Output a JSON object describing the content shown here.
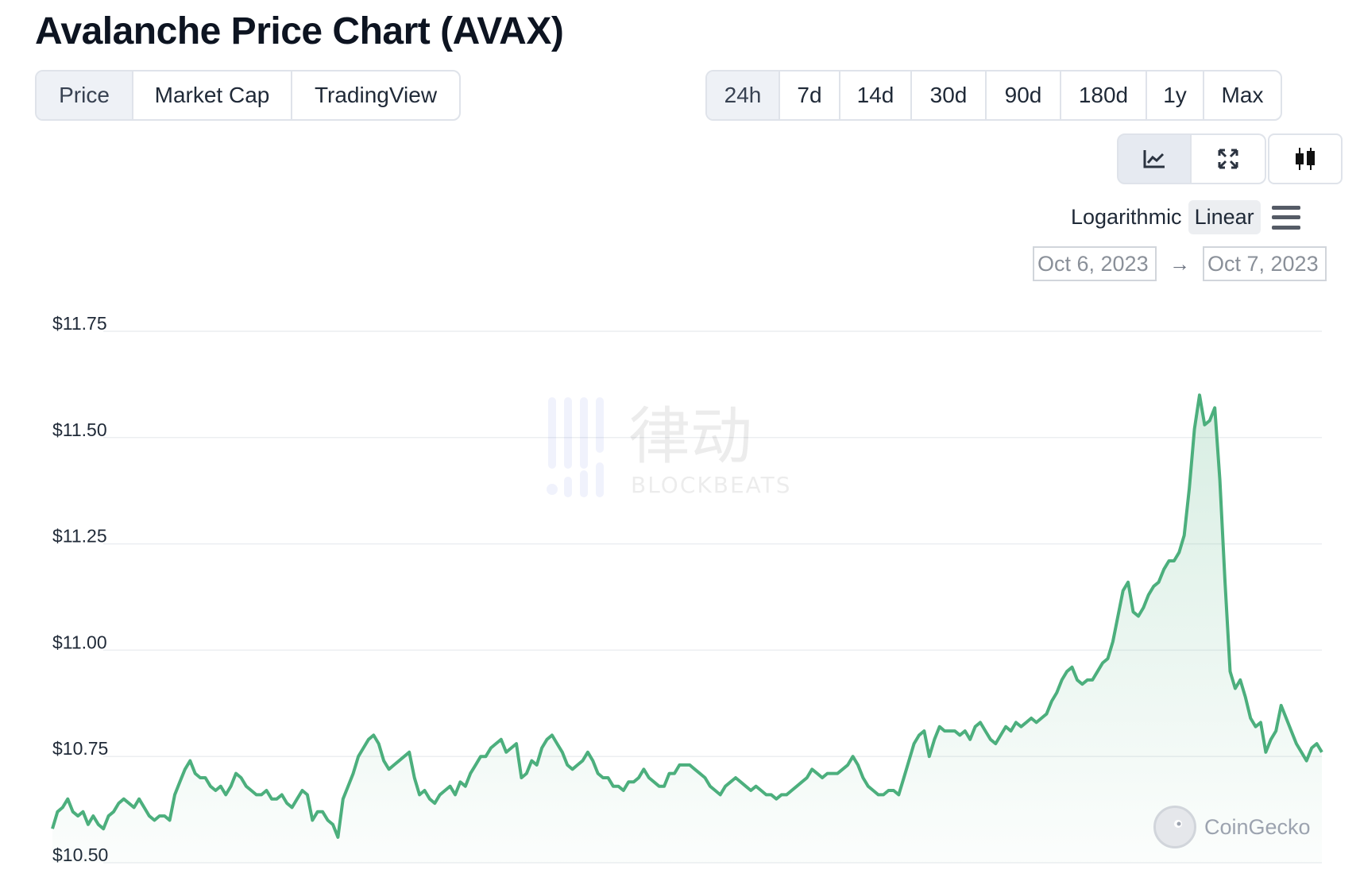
{
  "title": "Avalanche Price Chart (AVAX)",
  "view_tabs": [
    "Price",
    "Market Cap",
    "TradingView"
  ],
  "range_tabs": [
    "24h",
    "7d",
    "14d",
    "30d",
    "90d",
    "180d",
    "1y",
    "Max"
  ],
  "chart_type_icons": [
    "line-chart-icon",
    "expand-icon",
    "candlestick-icon"
  ],
  "scale": {
    "log_label": "Logarithmic",
    "linear_label": "Linear",
    "selected": "Linear"
  },
  "date_from": "Oct 6, 2023",
  "date_to": "Oct 7, 2023",
  "watermark": {
    "cn": "律动",
    "en": "BLOCKBEATS"
  },
  "attribution": "CoinGecko",
  "colors": {
    "line": "#4caf7d",
    "fill": "#4caf7d",
    "active_tab": "#eef1f6"
  },
  "chart_data": {
    "type": "area",
    "title": "",
    "xlabel": "",
    "ylabel": "",
    "ylim": [
      10.5,
      11.75
    ],
    "yticks": [
      10.5,
      10.75,
      11.0,
      11.25,
      11.5,
      11.75
    ],
    "ytick_labels": [
      "$10.50",
      "$10.75",
      "$11.00",
      "$11.25",
      "$11.50",
      "$11.75"
    ],
    "grid": true,
    "series": [
      {
        "values": [
          10.58,
          10.62,
          10.63,
          10.65,
          10.62,
          10.61,
          10.62,
          10.59,
          10.61,
          10.59,
          10.58,
          10.61,
          10.62,
          10.64,
          10.65,
          10.64,
          10.63,
          10.65,
          10.63,
          10.61,
          10.6,
          10.61,
          10.61,
          10.6,
          10.66,
          10.69,
          10.72,
          10.74,
          10.71,
          10.7,
          10.7,
          10.68,
          10.67,
          10.68,
          10.66,
          10.68,
          10.71,
          10.7,
          10.68,
          10.67,
          10.66,
          10.66,
          10.67,
          10.65,
          10.65,
          10.66,
          10.64,
          10.63,
          10.65,
          10.67,
          10.66,
          10.6,
          10.62,
          10.62,
          10.6,
          10.59,
          10.56,
          10.65,
          10.68,
          10.71,
          10.75,
          10.77,
          10.79,
          10.8,
          10.78,
          10.74,
          10.72,
          10.73,
          10.74,
          10.75,
          10.76,
          10.7,
          10.66,
          10.67,
          10.65,
          10.64,
          10.66,
          10.67,
          10.68,
          10.66,
          10.69,
          10.68,
          10.71,
          10.73,
          10.75,
          10.75,
          10.77,
          10.78,
          10.79,
          10.76,
          10.77,
          10.78,
          10.7,
          10.71,
          10.74,
          10.73,
          10.77,
          10.79,
          10.8,
          10.78,
          10.76,
          10.73,
          10.72,
          10.73,
          10.74,
          10.76,
          10.74,
          10.71,
          10.7,
          10.7,
          10.68,
          10.68,
          10.67,
          10.69,
          10.69,
          10.7,
          10.72,
          10.7,
          10.69,
          10.68,
          10.68,
          10.71,
          10.71,
          10.73,
          10.73,
          10.73,
          10.72,
          10.71,
          10.7,
          10.68,
          10.67,
          10.66,
          10.68,
          10.69,
          10.7,
          10.69,
          10.68,
          10.67,
          10.68,
          10.67,
          10.66,
          10.66,
          10.65,
          10.66,
          10.66,
          10.67,
          10.68,
          10.69,
          10.7,
          10.72,
          10.71,
          10.7,
          10.71,
          10.71,
          10.71,
          10.72,
          10.73,
          10.75,
          10.73,
          10.7,
          10.68,
          10.67,
          10.66,
          10.66,
          10.67,
          10.67,
          10.66,
          10.7,
          10.74,
          10.78,
          10.8,
          10.81,
          10.75,
          10.79,
          10.82,
          10.81,
          10.81,
          10.81,
          10.8,
          10.81,
          10.79,
          10.82,
          10.83,
          10.81,
          10.79,
          10.78,
          10.8,
          10.82,
          10.81,
          10.83,
          10.82,
          10.83,
          10.84,
          10.83,
          10.84,
          10.85,
          10.88,
          10.9,
          10.93,
          10.95,
          10.96,
          10.93,
          10.92,
          10.93,
          10.93,
          10.95,
          10.97,
          10.98,
          11.02,
          11.08,
          11.14,
          11.16,
          11.09,
          11.08,
          11.1,
          11.13,
          11.15,
          11.16,
          11.19,
          11.21,
          11.21,
          11.23,
          11.27,
          11.38,
          11.52,
          11.6,
          11.53,
          11.54,
          11.57,
          11.4,
          11.16,
          10.95,
          10.91,
          10.93,
          10.89,
          10.84,
          10.82,
          10.83,
          10.76,
          10.79,
          10.81,
          10.87,
          10.84,
          10.81,
          10.78,
          10.76,
          10.74,
          10.77,
          10.78,
          10.76
        ]
      }
    ]
  }
}
